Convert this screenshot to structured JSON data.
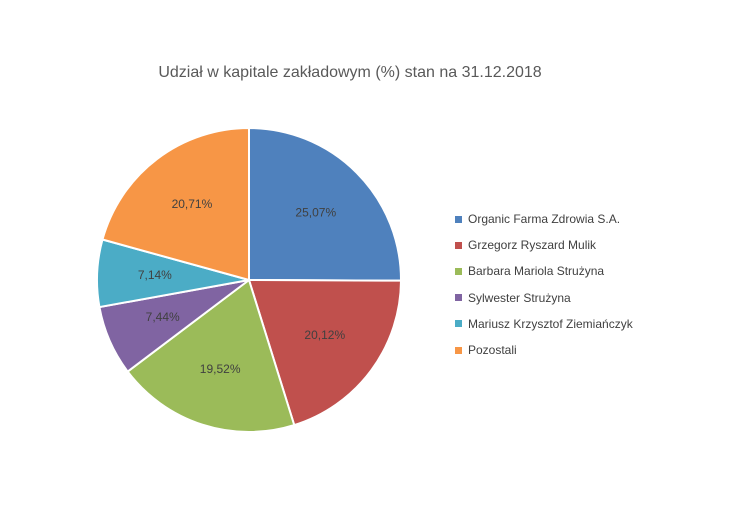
{
  "chart_data": {
    "type": "pie",
    "title": "Udział w kapitale zakładowym (%) stan na 31.12.2018",
    "categories": [
      "Organic Farma Zdrowia S.A.",
      "Grzegorz Ryszard Mulik",
      "Barbara Mariola Strużyna",
      "Sylwester Strużyna",
      "Mariusz Krzysztof Ziemiańczyk",
      "Pozostali"
    ],
    "values": [
      25.07,
      20.12,
      19.52,
      7.44,
      7.14,
      20.71
    ],
    "data_labels": [
      "25,07%",
      "20,12%",
      "19,52%",
      "7,44%",
      "7,14%",
      "20,71%"
    ],
    "colors": [
      "#4f81bd",
      "#c0504d",
      "#9bbb59",
      "#8064a2",
      "#4bacc6",
      "#f79646"
    ],
    "legend_position": "right"
  }
}
